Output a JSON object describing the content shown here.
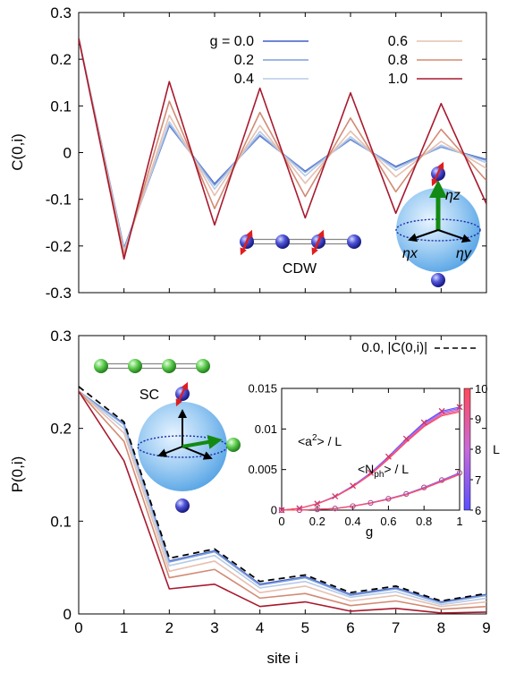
{
  "chart_data": [
    {
      "type": "line",
      "ylabel": "C(0,i)",
      "xlabel": "",
      "xlim": [
        0,
        9
      ],
      "ylim": [
        -0.3,
        0.3
      ],
      "x": [
        0,
        1,
        2,
        3,
        4,
        5,
        6,
        7,
        8,
        9
      ],
      "yticks": [
        "0.3",
        "0.2",
        "0.1",
        "0",
        "-0.1",
        "-0.2",
        "-0.3"
      ],
      "legend_position": "top",
      "series": [
        {
          "name": "g = 0.0",
          "color": "#3f5fc8",
          "values": [
            0.245,
            -0.205,
            0.058,
            -0.067,
            0.036,
            -0.04,
            0.028,
            -0.03,
            0.012,
            -0.015
          ]
        },
        {
          "name": "0.2",
          "color": "#7f9fd8",
          "values": [
            0.245,
            -0.207,
            0.06,
            -0.07,
            0.038,
            -0.042,
            0.029,
            -0.032,
            0.012,
            -0.017
          ]
        },
        {
          "name": "0.4",
          "color": "#b7cbe7",
          "values": [
            0.245,
            -0.21,
            0.066,
            -0.078,
            0.045,
            -0.05,
            0.034,
            -0.038,
            0.016,
            -0.022
          ]
        },
        {
          "name": "0.6",
          "color": "#e6c0b0",
          "values": [
            0.245,
            -0.215,
            0.08,
            -0.092,
            0.058,
            -0.066,
            0.046,
            -0.052,
            0.024,
            -0.034
          ]
        },
        {
          "name": "0.8",
          "color": "#d28a74",
          "values": [
            0.245,
            -0.22,
            0.11,
            -0.12,
            0.086,
            -0.094,
            0.074,
            -0.084,
            0.05,
            -0.06
          ]
        },
        {
          "name": "1.0",
          "color": "#a8192e",
          "values": [
            0.245,
            -0.228,
            0.152,
            -0.155,
            0.138,
            -0.14,
            0.128,
            -0.13,
            0.105,
            -0.11
          ]
        }
      ],
      "annotations": {
        "cdw_label": "CDW",
        "eta_z": "ηz",
        "eta_x": "ηx",
        "eta_y": "ηy"
      }
    },
    {
      "type": "line",
      "ylabel": "P(0,i)",
      "xlabel": "site i",
      "xlim": [
        0,
        9
      ],
      "ylim": [
        0,
        0.3
      ],
      "x": [
        0,
        1,
        2,
        3,
        4,
        5,
        6,
        7,
        8,
        9
      ],
      "xticks": [
        "0",
        "1",
        "2",
        "3",
        "4",
        "5",
        "6",
        "7",
        "8",
        "9"
      ],
      "yticks": [
        "0.3",
        "0.2",
        "0.1",
        "0"
      ],
      "legend_position": "top-right",
      "series": [
        {
          "name": "0.0",
          "color": "#3f5fc8",
          "values": [
            0.24,
            0.205,
            0.057,
            0.068,
            0.032,
            0.04,
            0.021,
            0.028,
            0.013,
            0.021
          ]
        },
        {
          "name": "0.2",
          "color": "#7f9fd8",
          "values": [
            0.24,
            0.204,
            0.056,
            0.067,
            0.031,
            0.039,
            0.02,
            0.027,
            0.012,
            0.02
          ]
        },
        {
          "name": "0.4",
          "color": "#b7cbe7",
          "values": [
            0.24,
            0.2,
            0.052,
            0.063,
            0.028,
            0.035,
            0.018,
            0.024,
            0.01,
            0.017
          ]
        },
        {
          "name": "0.6",
          "color": "#e6c0b0",
          "values": [
            0.24,
            0.195,
            0.046,
            0.057,
            0.023,
            0.03,
            0.014,
            0.02,
            0.008,
            0.013
          ]
        },
        {
          "name": "0.8",
          "color": "#d28a74",
          "values": [
            0.24,
            0.186,
            0.039,
            0.048,
            0.017,
            0.022,
            0.009,
            0.014,
            0.005,
            0.008
          ]
        },
        {
          "name": "1.0",
          "color": "#a8192e",
          "values": [
            0.24,
            0.165,
            0.027,
            0.032,
            0.008,
            0.013,
            0.003,
            0.006,
            0.001,
            0.002
          ]
        }
      ],
      "reference": {
        "name": "0.0, |C(0,i)|",
        "color": "#000000",
        "style": "dashed",
        "values": [
          0.245,
          0.207,
          0.06,
          0.07,
          0.035,
          0.042,
          0.023,
          0.03,
          0.014,
          0.022
        ]
      },
      "annotations": {
        "sc_label": "SC"
      }
    },
    {
      "type": "line",
      "inset": true,
      "xlabel": "g",
      "ylabel": "",
      "xlim": [
        0,
        1
      ],
      "ylim": [
        0,
        0.015
      ],
      "xticks": [
        "0",
        "0.2",
        "0.4",
        "0.6",
        "0.8",
        "1"
      ],
      "yticks": [
        "0.015",
        "0.01",
        "0.005",
        "0"
      ],
      "colorbar": {
        "label": "L",
        "min": 6,
        "max": 10,
        "ticks": [
          "10",
          "9",
          "8",
          "7",
          "6"
        ],
        "colors": [
          "#ff4a5a",
          "#5a50ff"
        ]
      },
      "series": [
        {
          "name": "<a²> / L",
          "x": [
            0,
            0.1,
            0.2,
            0.3,
            0.4,
            0.5,
            0.6,
            0.7,
            0.8,
            0.9,
            1.0
          ],
          "values": [
            0,
            0.00022,
            0.0008,
            0.0017,
            0.003,
            0.0046,
            0.0066,
            0.0088,
            0.0108,
            0.0122,
            0.0127
          ]
        },
        {
          "name": "<Nph> / L",
          "x": [
            0,
            0.1,
            0.2,
            0.3,
            0.4,
            0.5,
            0.6,
            0.7,
            0.8,
            0.9,
            1.0
          ],
          "values": [
            0,
            0.0,
            0.0001,
            0.0002,
            0.0005,
            0.0009,
            0.0014,
            0.002,
            0.0028,
            0.0037,
            0.0046
          ]
        }
      ],
      "series_labels": {
        "a2_prefix": "<a",
        "a2_sup": "2",
        "a2_suffix": "> / L",
        "nph_prefix": "<N",
        "nph_sub": "ph",
        "nph_suffix": "> / L"
      }
    }
  ]
}
